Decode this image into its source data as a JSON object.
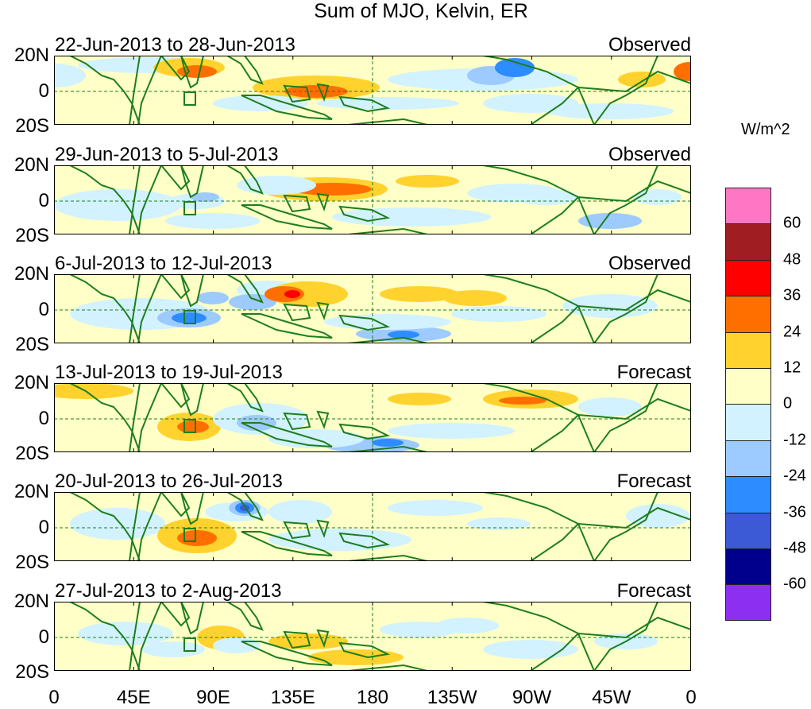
{
  "title": "Sum of MJO, Kelvin, ER",
  "units": "W/m^2",
  "panels": [
    {
      "period": "22-Jun-2013 to 28-Jun-2013",
      "kind": "Observed"
    },
    {
      "period": "29-Jun-2013 to 5-Jul-2013",
      "kind": "Observed"
    },
    {
      "period": "6-Jul-2013 to 12-Jul-2013",
      "kind": "Observed"
    },
    {
      "period": "13-Jul-2013 to 19-Jul-2013",
      "kind": "Forecast"
    },
    {
      "period": "20-Jul-2013 to 26-Jul-2013",
      "kind": "Forecast"
    },
    {
      "period": "27-Jul-2013 to 2-Aug-2013",
      "kind": "Forecast"
    }
  ],
  "y_labels": [
    "20N",
    "0",
    "20S"
  ],
  "x_labels": [
    "0",
    "45E",
    "90E",
    "135E",
    "180",
    "135W",
    "90W",
    "45W",
    "0"
  ],
  "colorbar": {
    "labels": [
      "60",
      "48",
      "36",
      "24",
      "12",
      "0",
      "-12",
      "-24",
      "-36",
      "-48",
      "-60"
    ],
    "colors": [
      "#ff77c4",
      "#a01e22",
      "#ff0000",
      "#ff6f00",
      "#ffd22e",
      "#ffffc8",
      "#d2f2ff",
      "#9dcaff",
      "#2d8cff",
      "#3c5ad6",
      "#00008c",
      "#8c2ff0"
    ]
  },
  "colors": {
    "land": "#1d7e1d",
    "bg": "#ffffc8"
  }
}
